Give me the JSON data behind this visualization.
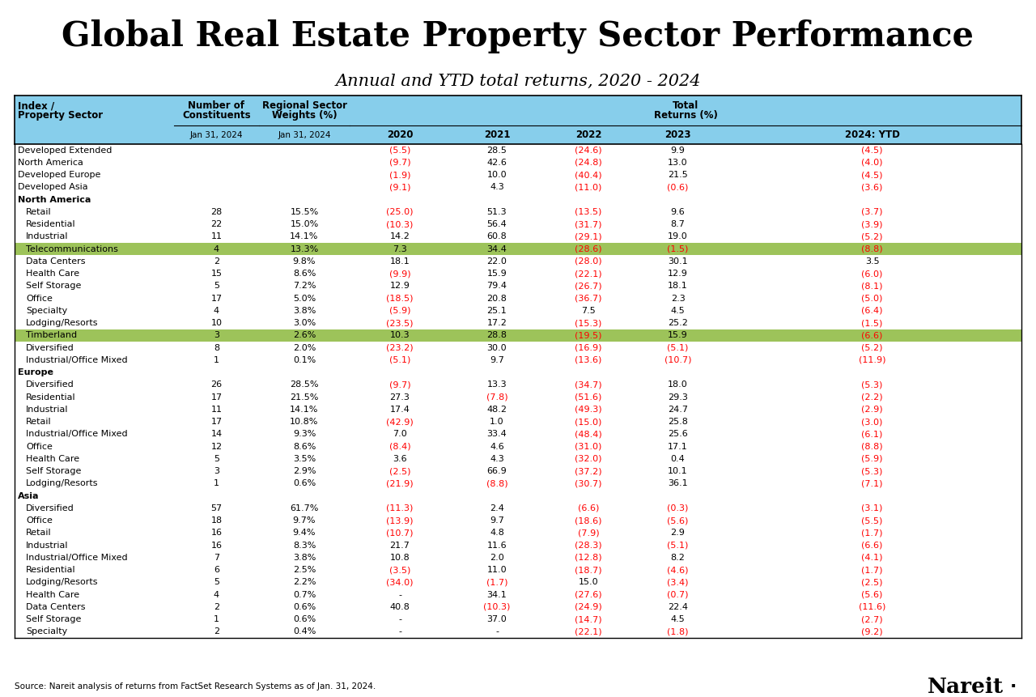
{
  "title": "Global Real Estate Property Sector Performance",
  "subtitle": "Annual and YTD total returns, 2020 - 2024",
  "footer": "Source: Nareit analysis of returns from FactSet Research Systems as of Jan. 31, 2024.",
  "header_bg": "#87CEEB",
  "highlight_green": "#9DC35A",
  "rows": [
    {
      "sector": "Developed Extended",
      "constituents": "",
      "weight": "",
      "y2020": "(5.5)",
      "y2021": "28.5",
      "y2022": "(24.6)",
      "y2023": "9.9",
      "ytd": "(4.5)",
      "highlight": false,
      "section_header": false,
      "indent": false
    },
    {
      "sector": "North America",
      "constituents": "",
      "weight": "",
      "y2020": "(9.7)",
      "y2021": "42.6",
      "y2022": "(24.8)",
      "y2023": "13.0",
      "ytd": "(4.0)",
      "highlight": false,
      "section_header": false,
      "indent": false
    },
    {
      "sector": "Developed Europe",
      "constituents": "",
      "weight": "",
      "y2020": "(1.9)",
      "y2021": "10.0",
      "y2022": "(40.4)",
      "y2023": "21.5",
      "ytd": "(4.5)",
      "highlight": false,
      "section_header": false,
      "indent": false
    },
    {
      "sector": "Developed Asia",
      "constituents": "",
      "weight": "",
      "y2020": "(9.1)",
      "y2021": "4.3",
      "y2022": "(11.0)",
      "y2023": "(0.6)",
      "ytd": "(3.6)",
      "highlight": false,
      "section_header": false,
      "indent": false
    },
    {
      "sector": "North America",
      "constituents": "",
      "weight": "",
      "y2020": "",
      "y2021": "",
      "y2022": "",
      "y2023": "",
      "ytd": "",
      "highlight": false,
      "section_header": true,
      "indent": false
    },
    {
      "sector": "Retail",
      "constituents": "28",
      "weight": "15.5%",
      "y2020": "(25.0)",
      "y2021": "51.3",
      "y2022": "(13.5)",
      "y2023": "9.6",
      "ytd": "(3.7)",
      "highlight": false,
      "section_header": false,
      "indent": true
    },
    {
      "sector": "Residential",
      "constituents": "22",
      "weight": "15.0%",
      "y2020": "(10.3)",
      "y2021": "56.4",
      "y2022": "(31.7)",
      "y2023": "8.7",
      "ytd": "(3.9)",
      "highlight": false,
      "section_header": false,
      "indent": true
    },
    {
      "sector": "Industrial",
      "constituents": "11",
      "weight": "14.1%",
      "y2020": "14.2",
      "y2021": "60.8",
      "y2022": "(29.1)",
      "y2023": "19.0",
      "ytd": "(5.2)",
      "highlight": false,
      "section_header": false,
      "indent": true
    },
    {
      "sector": "Telecommunications",
      "constituents": "4",
      "weight": "13.3%",
      "y2020": "7.3",
      "y2021": "34.4",
      "y2022": "(28.6)",
      "y2023": "(1.5)",
      "ytd": "(8.8)",
      "highlight": true,
      "section_header": false,
      "indent": true
    },
    {
      "sector": "Data Centers",
      "constituents": "2",
      "weight": "9.8%",
      "y2020": "18.1",
      "y2021": "22.0",
      "y2022": "(28.0)",
      "y2023": "30.1",
      "ytd": "3.5",
      "highlight": false,
      "section_header": false,
      "indent": true
    },
    {
      "sector": "Health Care",
      "constituents": "15",
      "weight": "8.6%",
      "y2020": "(9.9)",
      "y2021": "15.9",
      "y2022": "(22.1)",
      "y2023": "12.9",
      "ytd": "(6.0)",
      "highlight": false,
      "section_header": false,
      "indent": true
    },
    {
      "sector": "Self Storage",
      "constituents": "5",
      "weight": "7.2%",
      "y2020": "12.9",
      "y2021": "79.4",
      "y2022": "(26.7)",
      "y2023": "18.1",
      "ytd": "(8.1)",
      "highlight": false,
      "section_header": false,
      "indent": true
    },
    {
      "sector": "Office",
      "constituents": "17",
      "weight": "5.0%",
      "y2020": "(18.5)",
      "y2021": "20.8",
      "y2022": "(36.7)",
      "y2023": "2.3",
      "ytd": "(5.0)",
      "highlight": false,
      "section_header": false,
      "indent": true
    },
    {
      "sector": "Specialty",
      "constituents": "4",
      "weight": "3.8%",
      "y2020": "(5.9)",
      "y2021": "25.1",
      "y2022": "7.5",
      "y2023": "4.5",
      "ytd": "(6.4)",
      "highlight": false,
      "section_header": false,
      "indent": true
    },
    {
      "sector": "Lodging/Resorts",
      "constituents": "10",
      "weight": "3.0%",
      "y2020": "(23.5)",
      "y2021": "17.2",
      "y2022": "(15.3)",
      "y2023": "25.2",
      "ytd": "(1.5)",
      "highlight": false,
      "section_header": false,
      "indent": true
    },
    {
      "sector": "Timberland",
      "constituents": "3",
      "weight": "2.6%",
      "y2020": "10.3",
      "y2021": "28.8",
      "y2022": "(19.5)",
      "y2023": "15.9",
      "ytd": "(6.6)",
      "highlight": true,
      "section_header": false,
      "indent": true
    },
    {
      "sector": "Diversified",
      "constituents": "8",
      "weight": "2.0%",
      "y2020": "(23.2)",
      "y2021": "30.0",
      "y2022": "(16.9)",
      "y2023": "(5.1)",
      "ytd": "(5.2)",
      "highlight": false,
      "section_header": false,
      "indent": true
    },
    {
      "sector": "Industrial/Office Mixed",
      "constituents": "1",
      "weight": "0.1%",
      "y2020": "(5.1)",
      "y2021": "9.7",
      "y2022": "(13.6)",
      "y2023": "(10.7)",
      "ytd": "(11.9)",
      "highlight": false,
      "section_header": false,
      "indent": true
    },
    {
      "sector": "Europe",
      "constituents": "",
      "weight": "",
      "y2020": "",
      "y2021": "",
      "y2022": "",
      "y2023": "",
      "ytd": "",
      "highlight": false,
      "section_header": true,
      "indent": false
    },
    {
      "sector": "Diversified",
      "constituents": "26",
      "weight": "28.5%",
      "y2020": "(9.7)",
      "y2021": "13.3",
      "y2022": "(34.7)",
      "y2023": "18.0",
      "ytd": "(5.3)",
      "highlight": false,
      "section_header": false,
      "indent": true
    },
    {
      "sector": "Residential",
      "constituents": "17",
      "weight": "21.5%",
      "y2020": "27.3",
      "y2021": "(7.8)",
      "y2022": "(51.6)",
      "y2023": "29.3",
      "ytd": "(2.2)",
      "highlight": false,
      "section_header": false,
      "indent": true
    },
    {
      "sector": "Industrial",
      "constituents": "11",
      "weight": "14.1%",
      "y2020": "17.4",
      "y2021": "48.2",
      "y2022": "(49.3)",
      "y2023": "24.7",
      "ytd": "(2.9)",
      "highlight": false,
      "section_header": false,
      "indent": true
    },
    {
      "sector": "Retail",
      "constituents": "17",
      "weight": "10.8%",
      "y2020": "(42.9)",
      "y2021": "1.0",
      "y2022": "(15.0)",
      "y2023": "25.8",
      "ytd": "(3.0)",
      "highlight": false,
      "section_header": false,
      "indent": true
    },
    {
      "sector": "Industrial/Office Mixed",
      "constituents": "14",
      "weight": "9.3%",
      "y2020": "7.0",
      "y2021": "33.4",
      "y2022": "(48.4)",
      "y2023": "25.6",
      "ytd": "(6.1)",
      "highlight": false,
      "section_header": false,
      "indent": true
    },
    {
      "sector": "Office",
      "constituents": "12",
      "weight": "8.6%",
      "y2020": "(8.4)",
      "y2021": "4.6",
      "y2022": "(31.0)",
      "y2023": "17.1",
      "ytd": "(8.8)",
      "highlight": false,
      "section_header": false,
      "indent": true
    },
    {
      "sector": "Health Care",
      "constituents": "5",
      "weight": "3.5%",
      "y2020": "3.6",
      "y2021": "4.3",
      "y2022": "(32.0)",
      "y2023": "0.4",
      "ytd": "(5.9)",
      "highlight": false,
      "section_header": false,
      "indent": true
    },
    {
      "sector": "Self Storage",
      "constituents": "3",
      "weight": "2.9%",
      "y2020": "(2.5)",
      "y2021": "66.9",
      "y2022": "(37.2)",
      "y2023": "10.1",
      "ytd": "(5.3)",
      "highlight": false,
      "section_header": false,
      "indent": true
    },
    {
      "sector": "Lodging/Resorts",
      "constituents": "1",
      "weight": "0.6%",
      "y2020": "(21.9)",
      "y2021": "(8.8)",
      "y2022": "(30.7)",
      "y2023": "36.1",
      "ytd": "(7.1)",
      "highlight": false,
      "section_header": false,
      "indent": true
    },
    {
      "sector": "Asia",
      "constituents": "",
      "weight": "",
      "y2020": "",
      "y2021": "",
      "y2022": "",
      "y2023": "",
      "ytd": "",
      "highlight": false,
      "section_header": true,
      "indent": false
    },
    {
      "sector": "Diversified",
      "constituents": "57",
      "weight": "61.7%",
      "y2020": "(11.3)",
      "y2021": "2.4",
      "y2022": "(6.6)",
      "y2023": "(0.3)",
      "ytd": "(3.1)",
      "highlight": false,
      "section_header": false,
      "indent": true
    },
    {
      "sector": "Office",
      "constituents": "18",
      "weight": "9.7%",
      "y2020": "(13.9)",
      "y2021": "9.7",
      "y2022": "(18.6)",
      "y2023": "(5.6)",
      "ytd": "(5.5)",
      "highlight": false,
      "section_header": false,
      "indent": true
    },
    {
      "sector": "Retail",
      "constituents": "16",
      "weight": "9.4%",
      "y2020": "(10.7)",
      "y2021": "4.8",
      "y2022": "(7.9)",
      "y2023": "2.9",
      "ytd": "(1.7)",
      "highlight": false,
      "section_header": false,
      "indent": true
    },
    {
      "sector": "Industrial",
      "constituents": "16",
      "weight": "8.3%",
      "y2020": "21.7",
      "y2021": "11.6",
      "y2022": "(28.3)",
      "y2023": "(5.1)",
      "ytd": "(6.6)",
      "highlight": false,
      "section_header": false,
      "indent": true
    },
    {
      "sector": "Industrial/Office Mixed",
      "constituents": "7",
      "weight": "3.8%",
      "y2020": "10.8",
      "y2021": "2.0",
      "y2022": "(12.8)",
      "y2023": "8.2",
      "ytd": "(4.1)",
      "highlight": false,
      "section_header": false,
      "indent": true
    },
    {
      "sector": "Residential",
      "constituents": "6",
      "weight": "2.5%",
      "y2020": "(3.5)",
      "y2021": "11.0",
      "y2022": "(18.7)",
      "y2023": "(4.6)",
      "ytd": "(1.7)",
      "highlight": false,
      "section_header": false,
      "indent": true
    },
    {
      "sector": "Lodging/Resorts",
      "constituents": "5",
      "weight": "2.2%",
      "y2020": "(34.0)",
      "y2021": "(1.7)",
      "y2022": "15.0",
      "y2023": "(3.4)",
      "ytd": "(2.5)",
      "highlight": false,
      "section_header": false,
      "indent": true
    },
    {
      "sector": "Health Care",
      "constituents": "4",
      "weight": "0.7%",
      "y2020": "-",
      "y2021": "34.1",
      "y2022": "(27.6)",
      "y2023": "(0.7)",
      "ytd": "(5.6)",
      "highlight": false,
      "section_header": false,
      "indent": true
    },
    {
      "sector": "Data Centers",
      "constituents": "2",
      "weight": "0.6%",
      "y2020": "40.8",
      "y2021": "(10.3)",
      "y2022": "(24.9)",
      "y2023": "22.4",
      "ytd": "(11.6)",
      "highlight": false,
      "section_header": false,
      "indent": true
    },
    {
      "sector": "Self Storage",
      "constituents": "1",
      "weight": "0.6%",
      "y2020": "-",
      "y2021": "37.0",
      "y2022": "(14.7)",
      "y2023": "4.5",
      "ytd": "(2.7)",
      "highlight": false,
      "section_header": false,
      "indent": true
    },
    {
      "sector": "Specialty",
      "constituents": "2",
      "weight": "0.4%",
      "y2020": "-",
      "y2021": "-",
      "y2022": "(22.1)",
      "y2023": "(1.8)",
      "ytd": "(9.2)",
      "highlight": false,
      "section_header": false,
      "indent": true
    }
  ]
}
